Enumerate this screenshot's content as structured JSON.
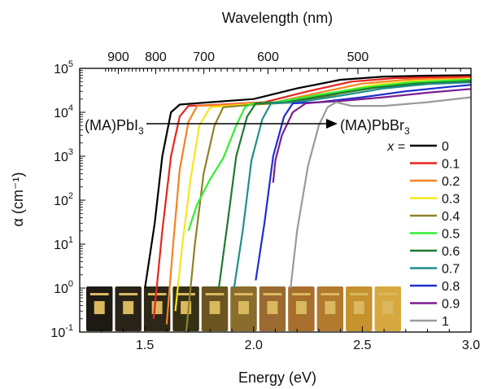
{
  "chart_data": {
    "type": "line",
    "ylog": true,
    "xlim": [
      1.2,
      3.0
    ],
    "ylim_exp": [
      -1,
      5
    ],
    "xlabel": "Energy (eV)",
    "ylabel": "α (cm⁻¹)",
    "top_axis_label": "Wavelength (nm)",
    "x_ticks": [
      1.5,
      2.0,
      2.5,
      3.0
    ],
    "x_tick_labels": [
      "1.5",
      "2.0",
      "2.5",
      "3.0"
    ],
    "top_ticks_nm": [
      900,
      800,
      700,
      600,
      500
    ],
    "top_tick_labels": [
      "900",
      "800",
      "700",
      "600",
      "500"
    ],
    "y_ticks_exp": [
      -1,
      0,
      1,
      2,
      3,
      4,
      5
    ],
    "y_tick_labels": [
      "-1",
      "0",
      "1",
      "2",
      "3",
      "4",
      "5"
    ],
    "legend_title": "x =",
    "legend_position": "right",
    "annotation_left": "(MA)PbI",
    "annotation_left_sub": "3",
    "annotation_right": "(MA)PbBr",
    "annotation_right_sub": "3",
    "series": [
      {
        "name": "0",
        "color": "#000000",
        "x": [
          1.5,
          1.545,
          1.58,
          1.62,
          1.66,
          1.8,
          2.0,
          2.2,
          2.4,
          2.6,
          2.8,
          3.0
        ],
        "y": [
          1,
          30,
          1000,
          10000,
          15000,
          17000,
          20000,
          35000,
          55000,
          65000,
          68000,
          70000
        ]
      },
      {
        "name": "0.1",
        "color": "#e8251e",
        "x": [
          1.54,
          1.58,
          1.62,
          1.66,
          1.7,
          1.85,
          2.05,
          2.25,
          2.45,
          2.65,
          2.85,
          3.0
        ],
        "y": [
          0.2,
          20,
          1000,
          8000,
          14000,
          15000,
          17000,
          30000,
          50000,
          60000,
          63000,
          65000
        ]
      },
      {
        "name": "0.2",
        "color": "#f58220",
        "x": [
          1.6,
          1.63,
          1.66,
          1.7,
          1.74,
          1.9,
          2.1,
          2.3,
          2.5,
          2.7,
          2.9,
          3.0
        ],
        "y": [
          0.15,
          10,
          500,
          6000,
          14000,
          15000,
          17000,
          28000,
          45000,
          55000,
          58000,
          60000
        ]
      },
      {
        "name": "0.3",
        "color": "#f7e51e",
        "x": [
          1.64,
          1.67,
          1.71,
          1.75,
          1.8,
          1.95,
          2.15,
          2.35,
          2.55,
          2.75,
          2.95,
          3.0
        ],
        "y": [
          0.3,
          8,
          300,
          5000,
          13000,
          15000,
          17000,
          27000,
          42000,
          52000,
          56000,
          58000
        ]
      },
      {
        "name": "0.4",
        "color": "#8f8228",
        "x": [
          1.69,
          1.73,
          1.77,
          1.82,
          1.86,
          2.0,
          2.2,
          2.4,
          2.6,
          2.8,
          3.0
        ],
        "y": [
          0.1,
          10,
          400,
          5000,
          13000,
          15000,
          17000,
          27000,
          40000,
          50000,
          55000
        ]
      },
      {
        "name": "0.5",
        "color": "#33ee33",
        "x": [
          1.7,
          1.74,
          1.8,
          1.86,
          1.92,
          1.96,
          2.0,
          2.1,
          2.3,
          2.5,
          2.7,
          2.9,
          3.0
        ],
        "y": [
          20,
          80,
          300,
          900,
          5000,
          13000,
          16000,
          17000,
          25000,
          36000,
          47000,
          53000,
          55000
        ]
      },
      {
        "name": "0.6",
        "color": "#1e7a2e",
        "x": [
          1.84,
          1.88,
          1.92,
          1.97,
          2.01,
          2.15,
          2.35,
          2.55,
          2.75,
          2.95,
          3.0
        ],
        "y": [
          1,
          30,
          1000,
          8000,
          16000,
          17000,
          25000,
          36000,
          45000,
          50000,
          52000
        ]
      },
      {
        "name": "0.7",
        "color": "#1f8f8a",
        "x": [
          1.91,
          1.95,
          1.99,
          2.04,
          2.08,
          2.2,
          2.4,
          2.6,
          2.8,
          3.0
        ],
        "y": [
          1,
          20,
          800,
          7000,
          16000,
          17000,
          24000,
          35000,
          44000,
          48000
        ]
      },
      {
        "name": "0.8",
        "color": "#1f2fcc",
        "x": [
          2.01,
          2.05,
          2.09,
          2.14,
          2.18,
          2.3,
          2.5,
          2.7,
          2.9,
          3.0
        ],
        "y": [
          1.5,
          30,
          1000,
          8000,
          16000,
          17000,
          22000,
          30000,
          38000,
          42000
        ]
      },
      {
        "name": "0.9",
        "color": "#7a1e8f",
        "x": [
          2.09,
          2.1,
          2.13,
          2.18,
          2.24,
          2.3,
          2.4,
          2.6,
          2.8,
          3.0
        ],
        "y": [
          250,
          800,
          3000,
          10000,
          16000,
          17000,
          18000,
          22000,
          28000,
          34000
        ]
      },
      {
        "name": "1",
        "color": "#9a9a9a",
        "x": [
          2.17,
          2.2,
          2.25,
          2.3,
          2.34,
          2.38,
          2.45,
          2.6,
          2.8,
          3.0
        ],
        "y": [
          1,
          20,
          600,
          5000,
          13000,
          17000,
          14000,
          14000,
          17000,
          22000
        ]
      }
    ],
    "swatch_colors": [
      "#1d1a14",
      "#2a2418",
      "#2c2717",
      "#343014",
      "#6a5420",
      "#8a6c2c",
      "#9a6a30",
      "#a86e2c",
      "#b27a2e",
      "#c6922e",
      "#d8a840"
    ]
  }
}
